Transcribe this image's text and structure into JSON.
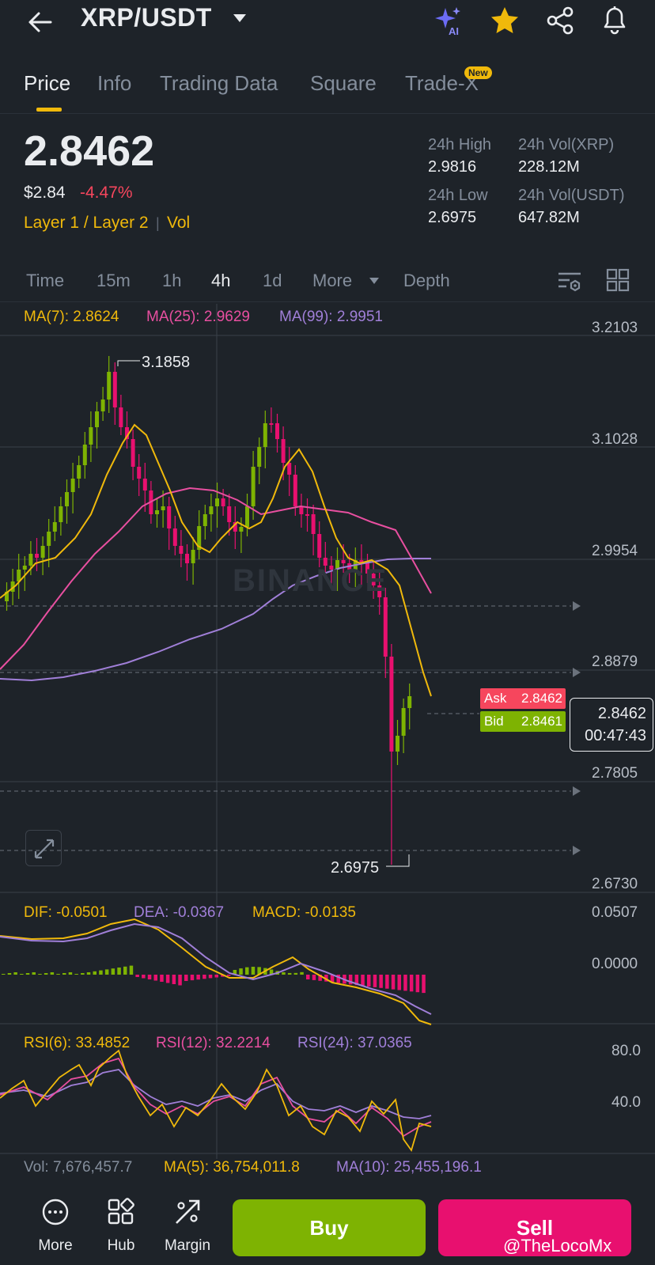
{
  "header": {
    "pair": "XRP/USDT",
    "icons": [
      "back-arrow-icon",
      "caret-down-icon",
      "ai-sparkle-icon",
      "star-icon",
      "share-icon",
      "bell-icon"
    ],
    "ai_badge": "AI",
    "star_color": "#f0b90b"
  },
  "tabs": {
    "items": [
      "Price",
      "Info",
      "Trading Data",
      "Square",
      "Trade-X"
    ],
    "active": "Price",
    "new_badge": "New"
  },
  "price": {
    "last": "2.8462",
    "usd": "$2.84",
    "change": "-4.47%",
    "tag": "Layer 1 / Layer 2",
    "tag_vol": "Vol",
    "high_label": "24h High",
    "high": "2.9816",
    "low_label": "24h Low",
    "low": "2.6975",
    "vol_xrp_label": "24h Vol(XRP)",
    "vol_xrp": "228.12M",
    "vol_usdt_label": "24h Vol(USDT)",
    "vol_usdt": "647.82M"
  },
  "intervals": {
    "items": [
      "Time",
      "15m",
      "1h",
      "4h",
      "1d",
      "More",
      "Depth"
    ],
    "active": "4h"
  },
  "chart": {
    "ma7": "MA(7): 2.8624",
    "ma25": "MA(25): 2.9629",
    "ma99": "MA(99): 2.9951",
    "price_axis": [
      "3.2103",
      "3.1028",
      "2.9954",
      "2.8879",
      "2.7805",
      "2.6730"
    ],
    "high_marker": "3.1858",
    "low_marker": "2.6975",
    "ask_label": "Ask",
    "ask": "2.8462",
    "bid_label": "Bid",
    "bid": "2.8461",
    "current_price": "2.8462",
    "countdown": "00:47:43",
    "watermark": "BINANCE",
    "macd_dif": "DIF: -0.0501",
    "macd_dea": "DEA: -0.0367",
    "macd_val": "MACD: -0.0135",
    "macd_axis": [
      "0.0507",
      "0.0000"
    ],
    "rsi6": "RSI(6): 33.4852",
    "rsi12": "RSI(12): 32.2214",
    "rsi24": "RSI(24): 37.0365",
    "rsi_axis": [
      "80.0",
      "40.0"
    ],
    "vol": "Vol: 7,676,457.7",
    "vol_ma5": "MA(5): 36,754,011.8",
    "vol_ma10": "MA(10): 25,455,196.1",
    "colors": {
      "up": "#7eb302",
      "down": "#e8106f",
      "ma7": "#f0b90b",
      "ma25": "#e84fa0",
      "ma99": "#a07fd8"
    }
  },
  "bottom": {
    "more": "More",
    "hub": "Hub",
    "margin": "Margin",
    "buy": "Buy",
    "sell": "Sell",
    "credit": "@TheLocoMx"
  }
}
